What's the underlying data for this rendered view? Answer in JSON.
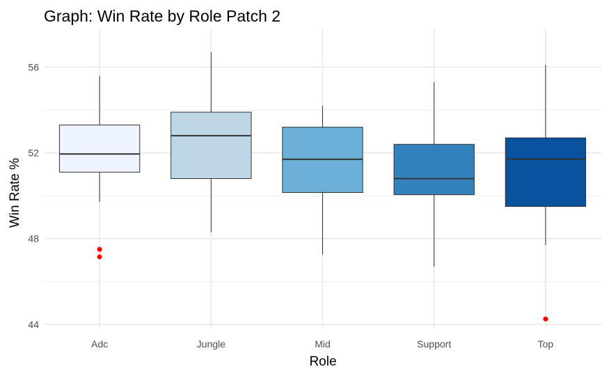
{
  "chart_data": {
    "type": "boxplot",
    "title": "Graph: Win Rate by Role Patch 2",
    "xlabel": "Role",
    "ylabel": "Win Rate %",
    "categories": [
      "Adc",
      "Jungle",
      "Mid",
      "Support",
      "Top"
    ],
    "ylim": [
      43.8,
      57.8
    ],
    "yticks": [
      44,
      48,
      52,
      56
    ],
    "yticks_text": [
      "44",
      "48",
      "52",
      "56"
    ],
    "minor_yticks": [
      46,
      50,
      54
    ],
    "grid": true,
    "legend": "none",
    "box_colors": [
      "#eff3ff",
      "#bdd7e7",
      "#6baed6",
      "#3182bd",
      "#08519c"
    ],
    "box_outline_color": "#333333",
    "outlier_color": "#ff0000",
    "grid_color": "#ebebeb",
    "boxes": [
      {
        "category": "Adc",
        "whisker_low": 49.7,
        "q1": 51.1,
        "median": 51.95,
        "q3": 53.3,
        "whisker_high": 55.6,
        "outliers": [
          47.5,
          47.15
        ]
      },
      {
        "category": "Jungle",
        "whisker_low": 48.3,
        "q1": 50.8,
        "median": 52.8,
        "q3": 53.9,
        "whisker_high": 56.7,
        "outliers": []
      },
      {
        "category": "Mid",
        "whisker_low": 47.25,
        "q1": 50.15,
        "median": 51.7,
        "q3": 53.2,
        "whisker_high": 54.2,
        "outliers": []
      },
      {
        "category": "Support",
        "whisker_low": 46.7,
        "q1": 50.05,
        "median": 50.8,
        "q3": 52.4,
        "whisker_high": 55.3,
        "outliers": []
      },
      {
        "category": "Top",
        "whisker_low": 47.7,
        "q1": 49.5,
        "median": 51.7,
        "q3": 52.7,
        "whisker_high": 56.1,
        "outliers": [
          44.25
        ]
      }
    ]
  }
}
